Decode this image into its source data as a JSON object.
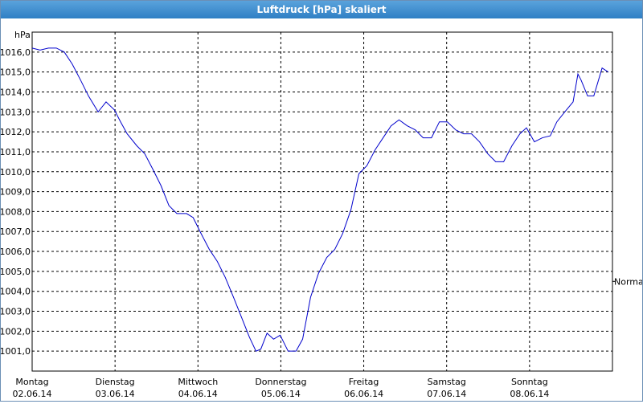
{
  "chart_data": {
    "type": "line",
    "title": "Luftdruck [hPa] skaliert",
    "y_unit": "hPa",
    "x": [
      0,
      2.3,
      4.7,
      7,
      9.3,
      11.6,
      14,
      16.3,
      19.1,
      21.4,
      23.8,
      25.6,
      27.5,
      30.3,
      32.6,
      35,
      37.3,
      39.6,
      41.9,
      44.7,
      46.6,
      48.9,
      51.3,
      53.6,
      55.9,
      58.3,
      60.6,
      62.9,
      64.8,
      66.2,
      68,
      69.9,
      71.8,
      74.1,
      76.4,
      78.3,
      80.6,
      82.9,
      85.3,
      87.6,
      89.9,
      92.3,
      94.6,
      96.9,
      99.3,
      101.6,
      103.9,
      106.2,
      108.6,
      110.9,
      113.2,
      115.6,
      117.9,
      120.2,
      122.6,
      124.9,
      127.2,
      129.5,
      131.9,
      134.2,
      136.5,
      138.9,
      141.2,
      143.1,
      145.4,
      147.7,
      150,
      151.9,
      154.2,
      156.6,
      158,
      158.9,
      160.8,
      162.6,
      165,
      166.8
    ],
    "series": [
      {
        "name": "Luftdruck",
        "color": "#0000cc",
        "values": [
          1016.2,
          1016.1,
          1016.2,
          1016.2,
          1016.0,
          1015.4,
          1014.6,
          1013.8,
          1013.0,
          1013.5,
          1013.1,
          1012.5,
          1011.9,
          1011.3,
          1010.9,
          1010.1,
          1009.3,
          1008.3,
          1007.9,
          1007.9,
          1007.7,
          1006.9,
          1006.1,
          1005.5,
          1004.7,
          1003.7,
          1002.7,
          1001.7,
          1001.0,
          1001.1,
          1001.9,
          1001.6,
          1001.8,
          1001.0,
          1001.0,
          1001.6,
          1003.7,
          1004.9,
          1005.7,
          1006.1,
          1006.9,
          1008.1,
          1009.9,
          1010.3,
          1011.1,
          1011.7,
          1012.3,
          1012.6,
          1012.3,
          1012.1,
          1011.7,
          1011.7,
          1012.5,
          1012.5,
          1012.1,
          1011.9,
          1011.9,
          1011.5,
          1010.9,
          1010.5,
          1010.5,
          1011.3,
          1011.9,
          1012.2,
          1011.5,
          1011.7,
          1011.8,
          1012.5,
          1013.0,
          1013.5,
          1014.9,
          1014.6,
          1013.8,
          1013.8,
          1015.2,
          1015.0
        ]
      }
    ],
    "xlim": [
      0,
      168
    ],
    "xticks": [
      {
        "value": 0,
        "label": "Montag"
      },
      {
        "value": 24,
        "label": "Dienstag"
      },
      {
        "value": 48,
        "label": "Mittwoch"
      },
      {
        "value": 72,
        "label": "Donnerstag"
      },
      {
        "value": 96,
        "label": "Freitag"
      },
      {
        "value": 120,
        "label": "Samstag"
      },
      {
        "value": 144,
        "label": "Sonntag"
      }
    ],
    "xtick_dates": [
      "02.06.14",
      "03.06.14",
      "04.06.14",
      "05.06.14",
      "06.06.14",
      "07.06.14",
      "08.06.14"
    ],
    "ylim": [
      1000,
      1017
    ],
    "yticks": [
      {
        "value": 1001,
        "label": "1001,0"
      },
      {
        "value": 1002,
        "label": "1002,0"
      },
      {
        "value": 1003,
        "label": "1003,0"
      },
      {
        "value": 1004,
        "label": "1004,0"
      },
      {
        "value": 1005,
        "label": "1005,0"
      },
      {
        "value": 1006,
        "label": "1006,0"
      },
      {
        "value": 1007,
        "label": "1007,0"
      },
      {
        "value": 1008,
        "label": "1008,0"
      },
      {
        "value": 1009,
        "label": "1009,0"
      },
      {
        "value": 1010,
        "label": "1010,0"
      },
      {
        "value": 1011,
        "label": "1011,0"
      },
      {
        "value": 1012,
        "label": "1012,0"
      },
      {
        "value": 1013,
        "label": "1013,0"
      },
      {
        "value": 1014,
        "label": "1014,0"
      },
      {
        "value": 1015,
        "label": "1015,0"
      },
      {
        "value": 1016,
        "label": "1016,0"
      }
    ],
    "reference": {
      "label": "Normal",
      "value": 1004.5
    },
    "grid": true
  }
}
